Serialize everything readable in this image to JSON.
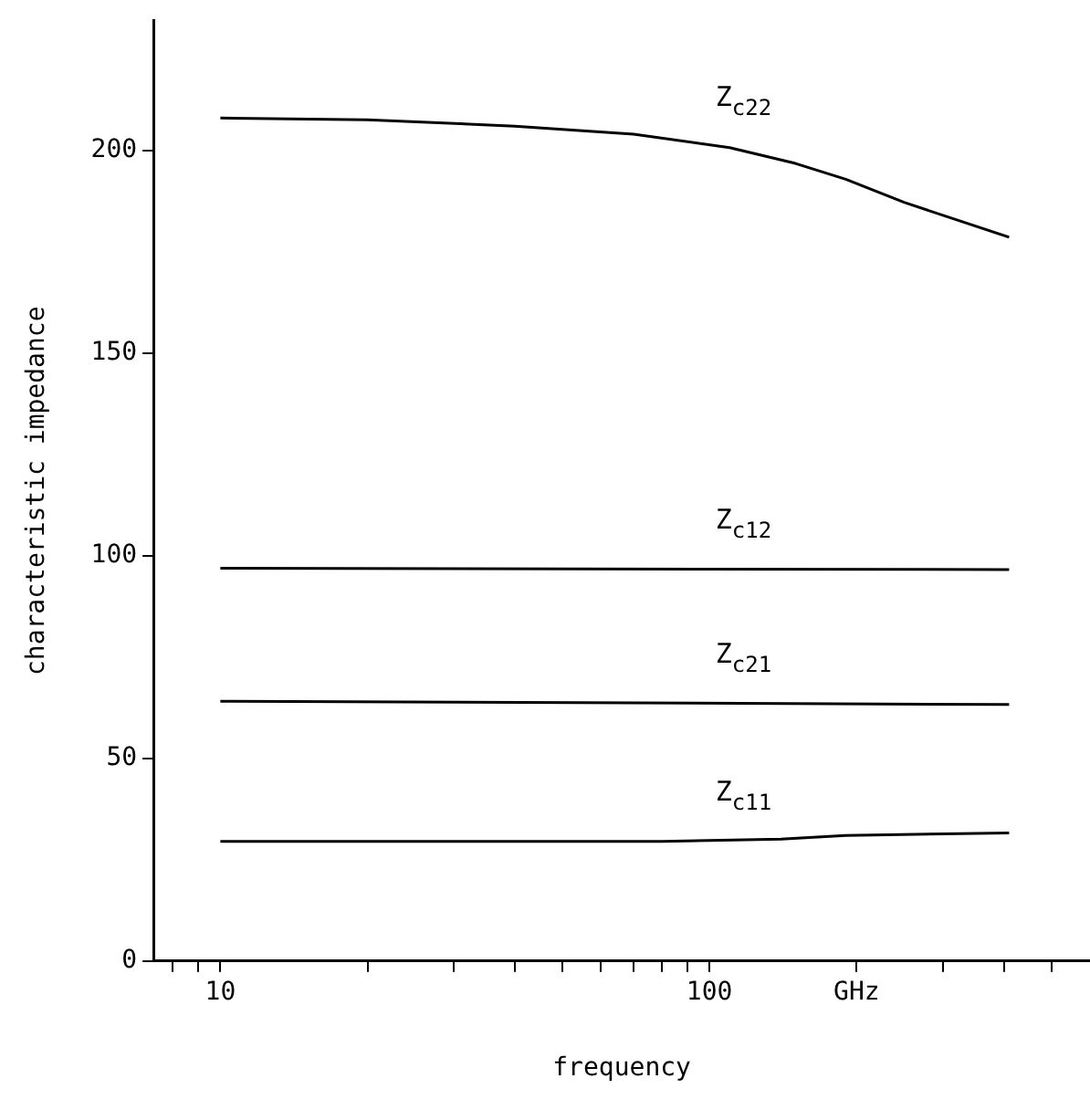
{
  "chart_data": {
    "type": "line",
    "xlabel": "frequency",
    "ylabel": "characteristic impedance",
    "log": "x",
    "xlim": [
      7.3,
      600
    ],
    "ylim": [
      0,
      232
    ],
    "xticks": [
      {
        "value": 8,
        "label": null
      },
      {
        "value": 9,
        "label": null
      },
      10,
      {
        "value": 20,
        "label": null
      },
      {
        "value": 30,
        "label": null
      },
      {
        "value": 40,
        "label": null
      },
      {
        "value": 50,
        "label": null
      },
      {
        "value": 60,
        "label": null
      },
      {
        "value": 70,
        "label": null
      },
      {
        "value": 80,
        "label": null
      },
      {
        "value": 90,
        "label": null
      },
      100,
      {
        "value": 200,
        "label": "GHz"
      },
      {
        "value": 300,
        "label": null
      },
      {
        "value": 400,
        "label": null
      },
      {
        "value": 500,
        "label": null
      }
    ],
    "yticks": [
      0,
      50,
      100,
      150,
      200
    ],
    "grid": false,
    "legend": false,
    "marker": "none",
    "line_style": "solid",
    "series": [
      {
        "name": "Z$_{c22}$",
        "color": "#000000",
        "x": [
          10,
          20,
          40,
          70,
          110,
          150,
          190,
          250,
          410
        ],
        "values": [
          208,
          207.6,
          206,
          204,
          200.7,
          196.8,
          192.9,
          187.2,
          178.6
        ]
      },
      {
        "name": "Z$_{c12}$",
        "color": "#000000",
        "x": [
          10,
          410
        ],
        "values": [
          96.9,
          96.6
        ]
      },
      {
        "name": "Z$_{c21}$",
        "color": "#000000",
        "x": [
          10,
          410
        ],
        "values": [
          64.1,
          63.3
        ]
      },
      {
        "name": "Z$_{c11}$",
        "color": "#000000",
        "x": [
          10,
          80,
          140,
          190,
          410
        ],
        "values": [
          29.5,
          29.5,
          30.1,
          31,
          31.6
        ]
      }
    ]
  }
}
